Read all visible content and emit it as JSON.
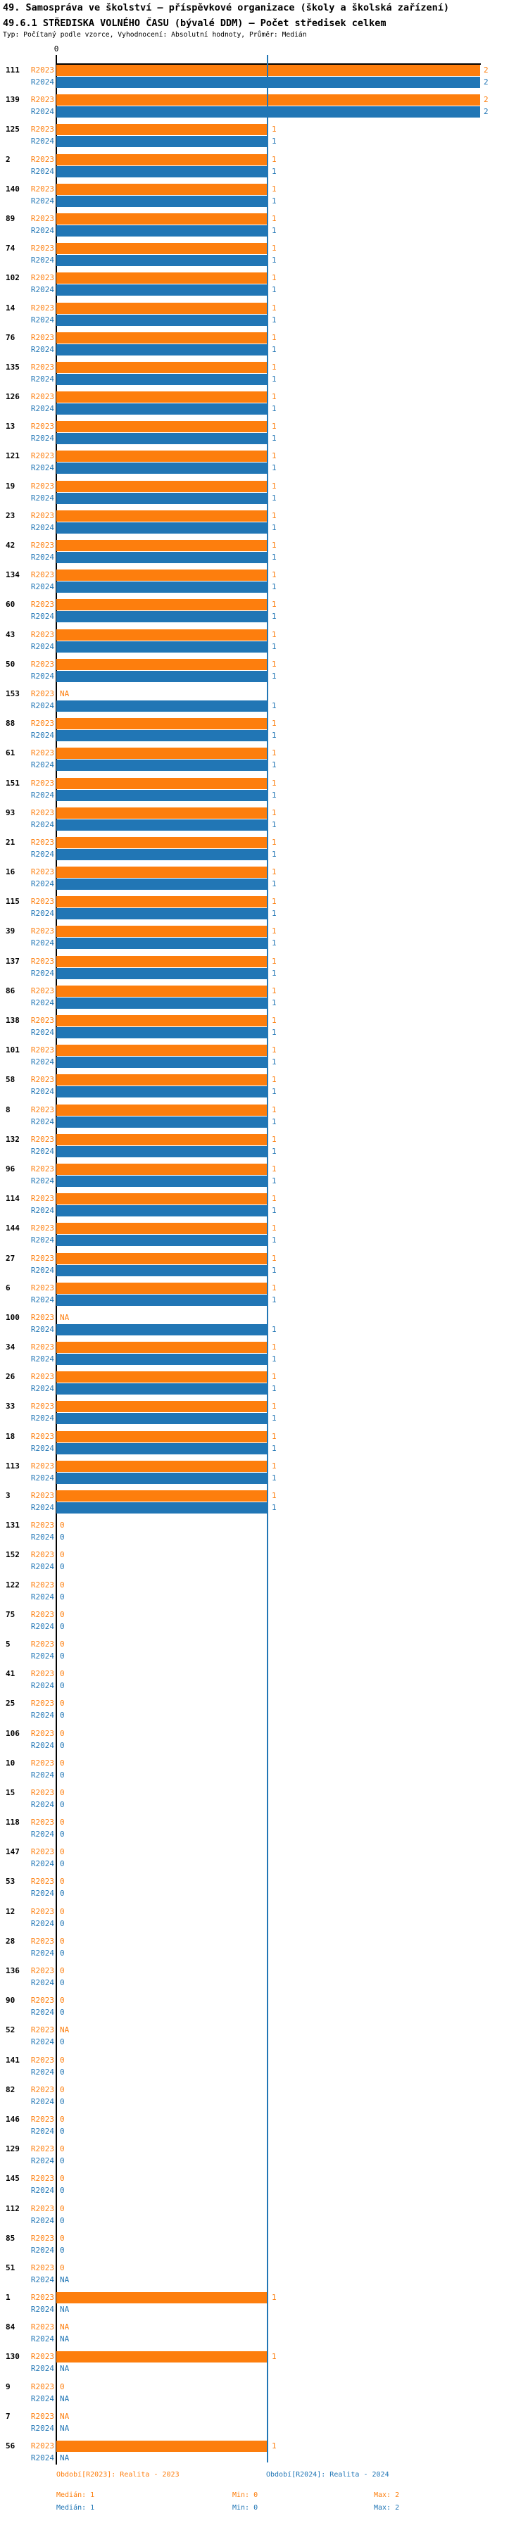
{
  "title_line1": "49. Samospráva ve školství — příspěvkové organizace (školy a školská zařízení)",
  "title_line2": "49.6.1 STŘEDISKA VOLNÉHO ČASU (bývalé DDM) — Počet středisek celkem",
  "subtitle": "Typ: Počítaný podle vzorce, Vyhodnocení: Absolutní hodnoty, Průměr: Medián",
  "axis": {
    "zero_label": "0",
    "na_label": "NA"
  },
  "colors": {
    "r2023": "#fd7e0d",
    "r2024": "#2176b5",
    "axis": "#000000",
    "median_line": "#2176b5"
  },
  "series_labels": {
    "r2023": "R2023",
    "r2024": "R2024"
  },
  "legend": {
    "r2023_period": "Období[R2023]: Realita - 2023",
    "r2024_period": "Období[R2024]: Realita - 2024",
    "r2023_stats": {
      "median": "Medián: 1",
      "min": "Min: 0",
      "max": "Max: 2"
    },
    "r2024_stats": {
      "median": "Medián: 1",
      "min": "Min: 0",
      "max": "Max: 2"
    }
  },
  "chart_data": {
    "type": "bar",
    "orientation": "horizontal",
    "title": "49.6.1 STŘEDISKA VOLNÉHO ČASU (bývalé DDM) — Počet středisek celkem",
    "xlim": [
      0,
      2
    ],
    "median_value": 1,
    "grid": false,
    "legend_position": "bottom",
    "categories": [
      "111",
      "139",
      "125",
      "2",
      "140",
      "89",
      "74",
      "102",
      "14",
      "76",
      "135",
      "126",
      "13",
      "121",
      "19",
      "23",
      "42",
      "134",
      "60",
      "43",
      "50",
      "153",
      "88",
      "61",
      "151",
      "93",
      "21",
      "16",
      "115",
      "39",
      "137",
      "86",
      "138",
      "101",
      "58",
      "8",
      "132",
      "96",
      "114",
      "144",
      "27",
      "6",
      "100",
      "34",
      "26",
      "33",
      "18",
      "113",
      "3",
      "131",
      "152",
      "122",
      "75",
      "5",
      "41",
      "25",
      "106",
      "10",
      "15",
      "118",
      "147",
      "53",
      "12",
      "28",
      "136",
      "90",
      "52",
      "141",
      "82",
      "146",
      "129",
      "145",
      "112",
      "85",
      "51",
      "1",
      "84",
      "130",
      "9",
      "7",
      "56"
    ],
    "series": [
      {
        "name": "R2023",
        "color": "#fd7e0d",
        "values": [
          2,
          2,
          1,
          1,
          1,
          1,
          1,
          1,
          1,
          1,
          1,
          1,
          1,
          1,
          1,
          1,
          1,
          1,
          1,
          1,
          1,
          "NA",
          1,
          1,
          1,
          1,
          1,
          1,
          1,
          1,
          1,
          1,
          1,
          1,
          1,
          1,
          1,
          1,
          1,
          1,
          1,
          1,
          "NA",
          1,
          1,
          1,
          1,
          1,
          1,
          0,
          0,
          0,
          0,
          0,
          0,
          0,
          0,
          0,
          0,
          0,
          0,
          0,
          0,
          0,
          0,
          0,
          "NA",
          0,
          0,
          0,
          0,
          0,
          0,
          0,
          0,
          1,
          "NA",
          1,
          0,
          "NA",
          1
        ]
      },
      {
        "name": "R2024",
        "color": "#2176b5",
        "values": [
          2,
          2,
          1,
          1,
          1,
          1,
          1,
          1,
          1,
          1,
          1,
          1,
          1,
          1,
          1,
          1,
          1,
          1,
          1,
          1,
          1,
          1,
          1,
          1,
          1,
          1,
          1,
          1,
          1,
          1,
          1,
          1,
          1,
          1,
          1,
          1,
          1,
          1,
          1,
          1,
          1,
          1,
          1,
          1,
          1,
          1,
          1,
          1,
          1,
          0,
          0,
          0,
          0,
          0,
          0,
          0,
          0,
          0,
          0,
          0,
          0,
          0,
          0,
          0,
          0,
          0,
          0,
          0,
          0,
          0,
          0,
          0,
          0,
          0,
          "NA",
          "NA",
          "NA",
          "NA",
          "NA",
          "NA",
          "NA"
        ]
      }
    ]
  }
}
